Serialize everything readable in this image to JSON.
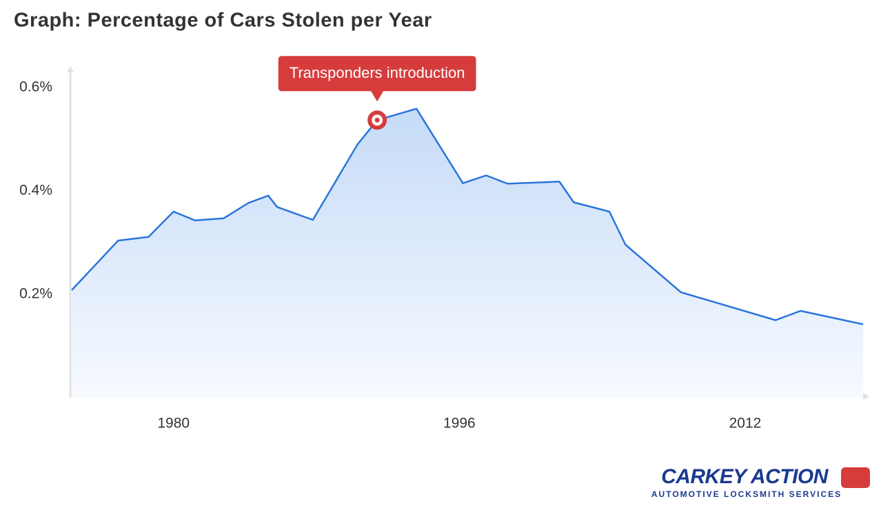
{
  "chart_data": {
    "type": "area",
    "title": "Graph: Percentage of Cars Stolen per Year",
    "x": [
      1974.3,
      1976.9,
      1978.6,
      1980.0,
      1981.2,
      1982.8,
      1984.2,
      1985.3,
      1985.8,
      1987.8,
      1990.3,
      1991.4,
      1993.6,
      1996.2,
      1997.5,
      1998.7,
      2001.6,
      2002.4,
      2004.4,
      2005.3,
      2008.4,
      2013.7,
      2015.1,
      2018.6
    ],
    "values": [
      0.208,
      0.304,
      0.311,
      0.36,
      0.343,
      0.347,
      0.377,
      0.391,
      0.369,
      0.344,
      0.49,
      0.537,
      0.559,
      0.415,
      0.43,
      0.414,
      0.418,
      0.378,
      0.36,
      0.296,
      0.204,
      0.15,
      0.168,
      0.142
    ],
    "color": "#2a74db",
    "xlim": [
      1974.3,
      2018.6
    ],
    "xticks": [
      1980,
      1996,
      2012
    ],
    "ylim": [
      0,
      0.64
    ],
    "yticks": [
      {
        "value": 0.2,
        "label": "0.2%"
      },
      {
        "value": 0.4,
        "label": "0.4%"
      },
      {
        "value": 0.6,
        "label": "0.6%"
      }
    ],
    "annotations": [
      {
        "text": "Transponders introduction",
        "x": 1991.4,
        "y": 0.537,
        "color": "#d63c3c"
      }
    ]
  },
  "logo": {
    "name": "CARKEY ACTION",
    "tagline": "AUTOMOTIVE LOCKSMITH SERVICES"
  }
}
